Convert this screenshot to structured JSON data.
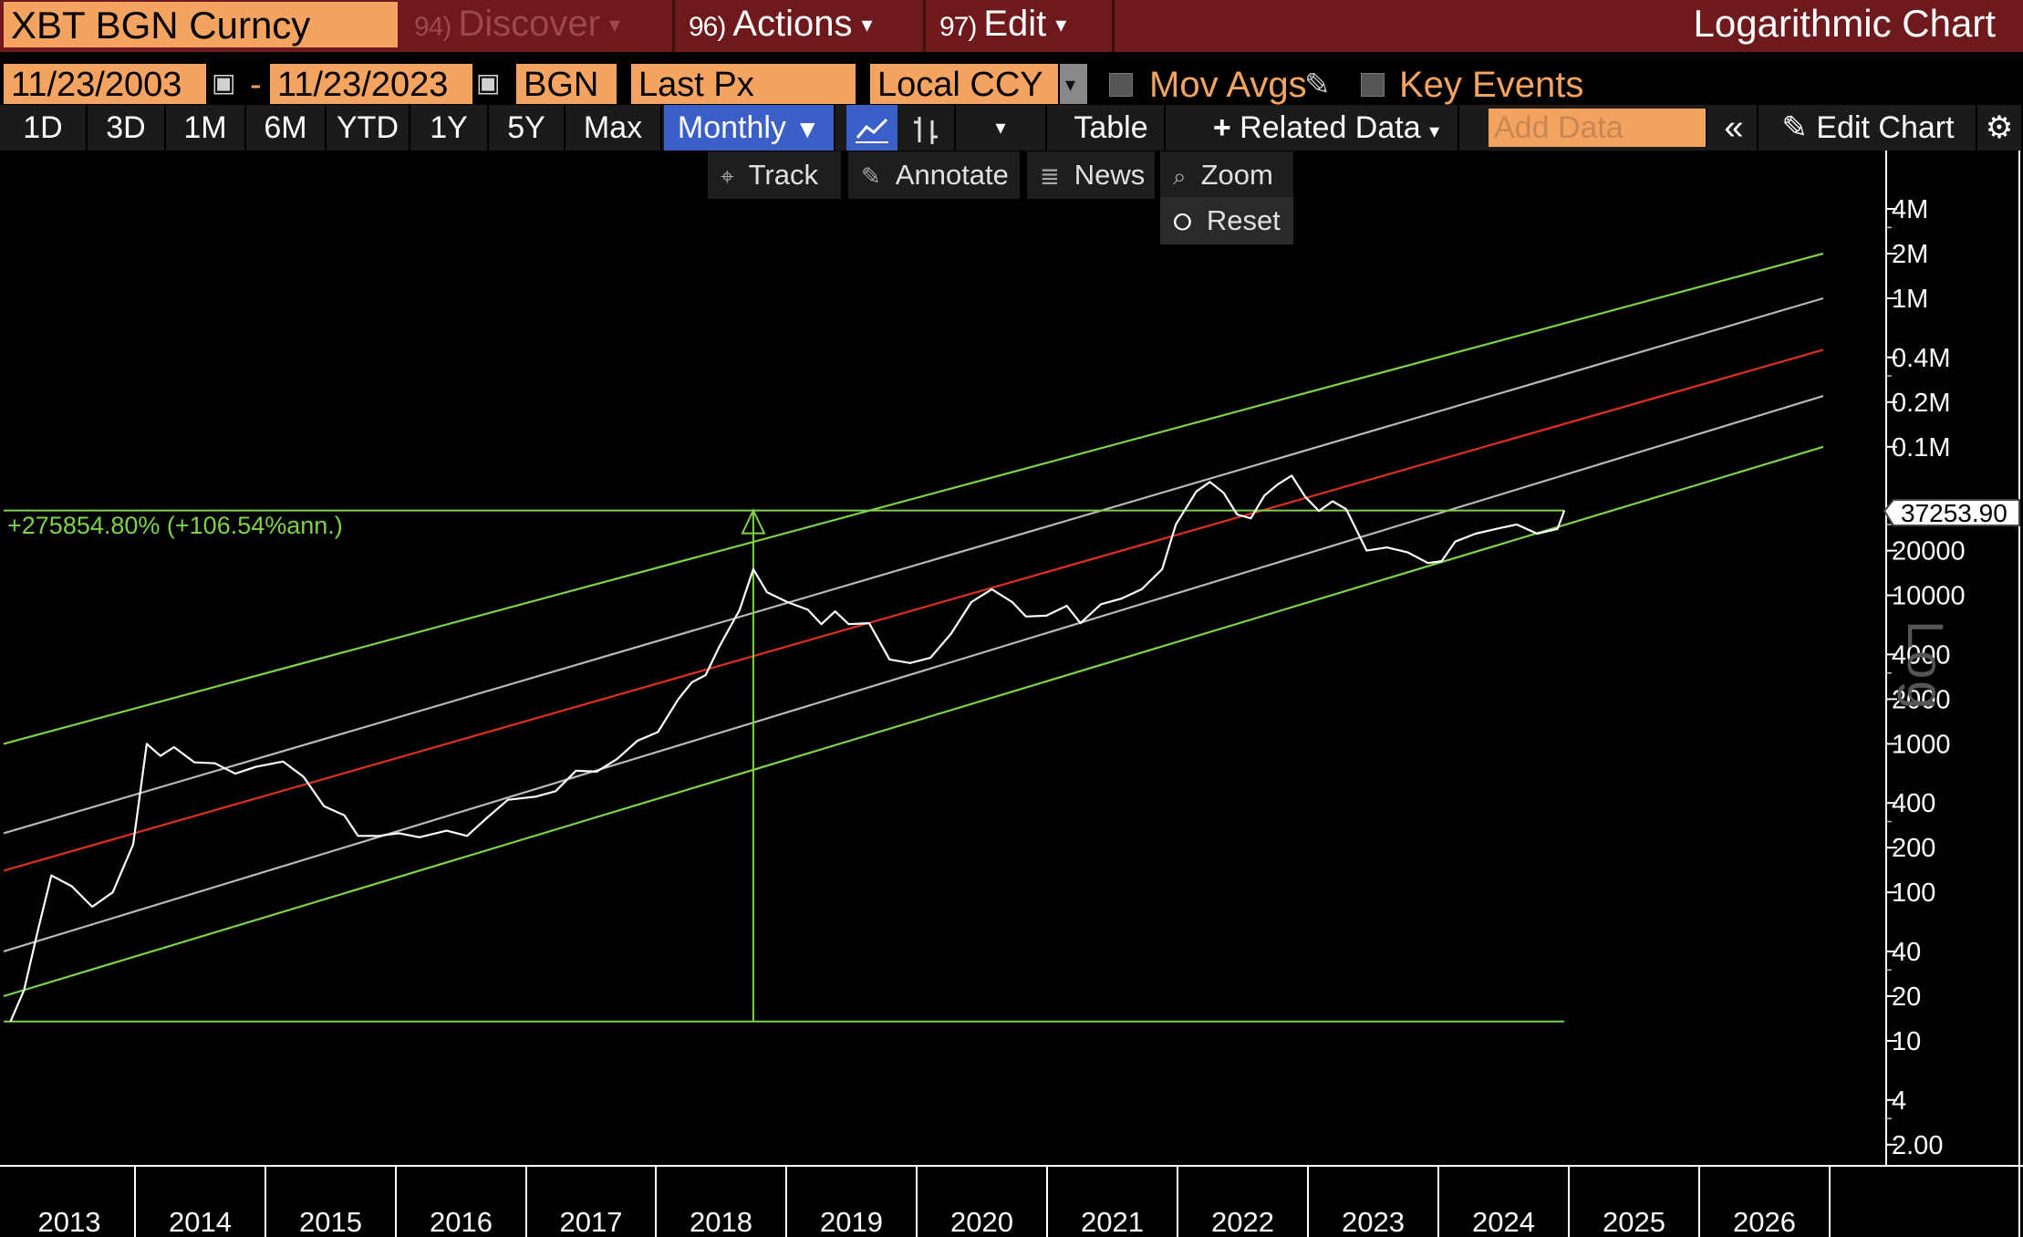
{
  "titlebar": {
    "ticker": "XBT BGN Curncy",
    "discover": {
      "num": "94)",
      "label": "Discover"
    },
    "actions": {
      "num": "96)",
      "label": "Actions"
    },
    "edit": {
      "num": "97)",
      "label": "Edit"
    },
    "window_title": "Logarithmic Chart"
  },
  "settings": {
    "start_date": "11/23/2003",
    "end_date": "11/23/2023",
    "source": "BGN",
    "field": "Last Px",
    "currency": "Local CCY",
    "mov_avgs": "Mov Avgs",
    "key_events": "Key Events"
  },
  "toolbar": {
    "periods": [
      "1D",
      "3D",
      "1M",
      "6M",
      "YTD",
      "1Y",
      "5Y",
      "Max"
    ],
    "frequency": "Monthly",
    "table": "Table",
    "related_data": "Related Data",
    "add_data_placeholder": "Add Data",
    "edit_chart": "Edit Chart"
  },
  "tools": {
    "track": "Track",
    "annotate": "Annotate",
    "news": "News",
    "zoom": "Zoom",
    "reset": "Reset"
  },
  "colors": {
    "titlebar": "#6e1a1d",
    "orange_field": "#f4a460",
    "selected": "#3c5fc7",
    "band_outer": "#7ed348",
    "band_inner": "#b8b8b8",
    "regression": "#e0301e",
    "price": "#ffffff"
  },
  "annotation": {
    "measure_label": "+275854.80% (+106.54%ann.)",
    "last_price_label": "37253.90"
  },
  "log_axis_label": "Log",
  "chart_data": {
    "type": "line",
    "title": "",
    "yscale": "log",
    "y_ticks": [
      {
        "v": 4000000,
        "label": "4M"
      },
      {
        "v": 2000000,
        "label": "2M"
      },
      {
        "v": 1000000,
        "label": "1M"
      },
      {
        "v": 400000,
        "label": "0.4M"
      },
      {
        "v": 200000,
        "label": "0.2M"
      },
      {
        "v": 100000,
        "label": "0.1M"
      },
      {
        "v": 20000,
        "label": "20000"
      },
      {
        "v": 10000,
        "label": "10000"
      },
      {
        "v": 4000,
        "label": "4000"
      },
      {
        "v": 2000,
        "label": "2000"
      },
      {
        "v": 1000,
        "label": "1000"
      },
      {
        "v": 400,
        "label": "400"
      },
      {
        "v": 200,
        "label": "200"
      },
      {
        "v": 100,
        "label": "100"
      },
      {
        "v": 40,
        "label": "40"
      },
      {
        "v": 20,
        "label": "20"
      },
      {
        "v": 10,
        "label": "10"
      },
      {
        "v": 4,
        "label": "4"
      },
      {
        "v": 2,
        "label": "2.00"
      }
    ],
    "x_ticks": [
      "2013",
      "2014",
      "2015",
      "2016",
      "2017",
      "2018",
      "2019",
      "2020",
      "2021",
      "2022",
      "2023",
      "2024",
      "2025",
      "2026"
    ],
    "ylim": [
      1.5,
      7000000
    ],
    "xlim": [
      2012.45,
      2026.95
    ],
    "series": [
      {
        "kind": "price",
        "points": [
          [
            2012.5,
            13.5
          ],
          [
            2012.6,
            22
          ],
          [
            2012.7,
            55
          ],
          [
            2012.8,
            130
          ],
          [
            2012.95,
            110
          ],
          [
            2013.1,
            80
          ],
          [
            2013.25,
            100
          ],
          [
            2013.4,
            210
          ],
          [
            2013.5,
            1000
          ],
          [
            2013.6,
            830
          ],
          [
            2013.7,
            950
          ],
          [
            2013.85,
            750
          ],
          [
            2014.0,
            740
          ],
          [
            2014.15,
            630
          ],
          [
            2014.3,
            700
          ],
          [
            2014.5,
            760
          ],
          [
            2014.65,
            600
          ],
          [
            2014.8,
            380
          ],
          [
            2014.95,
            330
          ],
          [
            2015.05,
            240
          ],
          [
            2015.2,
            240
          ],
          [
            2015.35,
            250
          ],
          [
            2015.5,
            235
          ],
          [
            2015.7,
            260
          ],
          [
            2015.85,
            240
          ],
          [
            2016.0,
            320
          ],
          [
            2016.15,
            420
          ],
          [
            2016.35,
            440
          ],
          [
            2016.5,
            480
          ],
          [
            2016.65,
            660
          ],
          [
            2016.8,
            650
          ],
          [
            2016.95,
            790
          ],
          [
            2017.1,
            1050
          ],
          [
            2017.25,
            1200
          ],
          [
            2017.4,
            2000
          ],
          [
            2017.5,
            2600
          ],
          [
            2017.6,
            2900
          ],
          [
            2017.7,
            4500
          ],
          [
            2017.85,
            8000
          ],
          [
            2017.95,
            15000
          ],
          [
            2018.05,
            10500
          ],
          [
            2018.2,
            9000
          ],
          [
            2018.35,
            8000
          ],
          [
            2018.45,
            6400
          ],
          [
            2018.55,
            7800
          ],
          [
            2018.65,
            6400
          ],
          [
            2018.8,
            6500
          ],
          [
            2018.95,
            3700
          ],
          [
            2019.1,
            3500
          ],
          [
            2019.25,
            3800
          ],
          [
            2019.4,
            5500
          ],
          [
            2019.55,
            9000
          ],
          [
            2019.7,
            11000
          ],
          [
            2019.85,
            9000
          ],
          [
            2019.95,
            7200
          ],
          [
            2020.1,
            7300
          ],
          [
            2020.25,
            8500
          ],
          [
            2020.35,
            6500
          ],
          [
            2020.5,
            8700
          ],
          [
            2020.65,
            9500
          ],
          [
            2020.8,
            11000
          ],
          [
            2020.95,
            15000
          ],
          [
            2021.05,
            30000
          ],
          [
            2021.2,
            50000
          ],
          [
            2021.3,
            58000
          ],
          [
            2021.4,
            49000
          ],
          [
            2021.5,
            35000
          ],
          [
            2021.6,
            33000
          ],
          [
            2021.7,
            47000
          ],
          [
            2021.8,
            56000
          ],
          [
            2021.9,
            64000
          ],
          [
            2022.0,
            46000
          ],
          [
            2022.1,
            37000
          ],
          [
            2022.2,
            43000
          ],
          [
            2022.3,
            38000
          ],
          [
            2022.45,
            20000
          ],
          [
            2022.6,
            21000
          ],
          [
            2022.75,
            19500
          ],
          [
            2022.9,
            16500
          ],
          [
            2023.0,
            17000
          ],
          [
            2023.1,
            23000
          ],
          [
            2023.25,
            26000
          ],
          [
            2023.4,
            28000
          ],
          [
            2023.55,
            30000
          ],
          [
            2023.7,
            26000
          ],
          [
            2023.85,
            28000
          ],
          [
            2023.9,
            37253.9
          ]
        ]
      }
    ],
    "bands": [
      {
        "kind": "outer",
        "start": [
          2012.45,
          1000
        ],
        "end": [
          2025.8,
          2000000
        ]
      },
      {
        "kind": "inner",
        "start": [
          2012.45,
          250
        ],
        "end": [
          2025.8,
          1000000
        ]
      },
      {
        "kind": "center",
        "start": [
          2012.45,
          140
        ],
        "end": [
          2025.8,
          450000
        ]
      },
      {
        "kind": "inner",
        "start": [
          2012.45,
          40
        ],
        "end": [
          2025.8,
          220000
        ]
      },
      {
        "kind": "outer",
        "start": [
          2012.45,
          20
        ],
        "end": [
          2025.8,
          100000
        ]
      }
    ],
    "measure": {
      "x": 2017.95,
      "y_low": 13.5,
      "y_high": 37253.9,
      "x_start": 2012.45,
      "x_end": 2023.9
    }
  }
}
